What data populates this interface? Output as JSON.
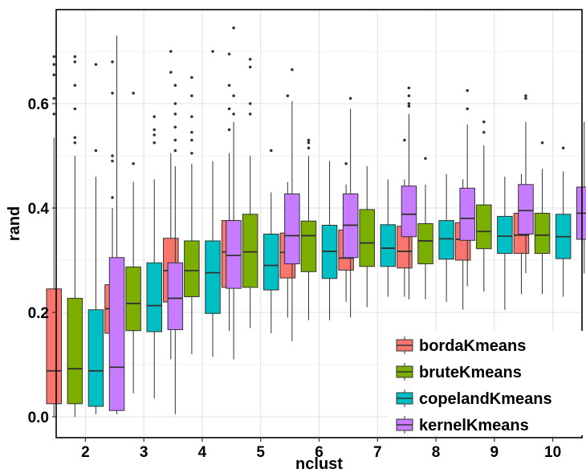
{
  "chart_data": {
    "type": "boxplot",
    "title": "",
    "xlabel": "nclust",
    "ylabel": "rand",
    "categories": [
      "2",
      "3",
      "4",
      "5",
      "6",
      "7",
      "8",
      "9",
      "10"
    ],
    "yticks": [
      "0.0",
      "0.2",
      "0.4",
      "0.6"
    ],
    "ytick_values": [
      0.0,
      0.2,
      0.4,
      0.6
    ],
    "ylim": [
      -0.04,
      0.78
    ],
    "grid": true,
    "legend_position": "bottom-right",
    "series": [
      {
        "name": "bordaKmeans",
        "color": "#F8766D",
        "boxes": [
          {
            "min": 0.0,
            "q1": 0.025,
            "median": 0.088,
            "q3": 0.245,
            "max": 0.535,
            "outliers": [
              0.58,
              0.61,
              0.655,
              0.675,
              0.69
            ]
          },
          {
            "min": 0.06,
            "q1": 0.16,
            "median": 0.207,
            "q3": 0.253,
            "max": 0.4,
            "outliers": [
              0.42,
              0.49,
              0.5,
              0.62,
              0.68
            ]
          },
          {
            "min": 0.11,
            "q1": 0.22,
            "median": 0.28,
            "q3": 0.342,
            "max": 0.505,
            "outliers": [
              0.66,
              0.7
            ]
          },
          {
            "min": 0.165,
            "q1": 0.248,
            "median": 0.316,
            "q3": 0.376,
            "max": 0.505,
            "outliers": [
              0.55,
              0.59,
              0.635,
              0.695
            ]
          },
          {
            "min": 0.19,
            "q1": 0.266,
            "median": 0.315,
            "q3": 0.352,
            "max": 0.45,
            "outliers": [
              0.615
            ]
          },
          {
            "min": 0.22,
            "q1": 0.281,
            "median": 0.304,
            "q3": 0.358,
            "max": 0.445,
            "outliers": [
              0.485
            ]
          },
          {
            "min": 0.23,
            "q1": 0.285,
            "median": 0.317,
            "q3": 0.365,
            "max": 0.455,
            "outliers": [
              0.53
            ]
          },
          {
            "min": 0.205,
            "q1": 0.3,
            "median": 0.34,
            "q3": 0.372,
            "max": 0.455,
            "outliers": []
          },
          {
            "min": 0.235,
            "q1": 0.313,
            "median": 0.348,
            "q3": 0.39,
            "max": 0.465,
            "outliers": []
          }
        ]
      },
      {
        "name": "bruteKmeans",
        "color": "#7CAE00",
        "boxes": [
          {
            "min": 0.0,
            "q1": 0.025,
            "median": 0.092,
            "q3": 0.227,
            "max": 0.5,
            "outliers": [
              0.525,
              0.535,
              0.59,
              0.635,
              0.68,
              0.69
            ]
          },
          {
            "min": 0.045,
            "q1": 0.165,
            "median": 0.217,
            "q3": 0.287,
            "max": 0.45,
            "outliers": [
              0.485,
              0.62
            ]
          },
          {
            "min": 0.12,
            "q1": 0.23,
            "median": 0.28,
            "q3": 0.337,
            "max": 0.485,
            "outliers": [
              0.505,
              0.53,
              0.545,
              0.575,
              0.615,
              0.65
            ]
          },
          {
            "min": 0.17,
            "q1": 0.248,
            "median": 0.316,
            "q3": 0.388,
            "max": 0.5,
            "outliers": [
              0.58,
              0.6,
              0.67,
              0.685
            ]
          },
          {
            "min": 0.185,
            "q1": 0.278,
            "median": 0.347,
            "q3": 0.375,
            "max": 0.5,
            "outliers": [
              0.515,
              0.525,
              0.53
            ]
          },
          {
            "min": 0.21,
            "q1": 0.288,
            "median": 0.333,
            "q3": 0.397,
            "max": 0.48,
            "outliers": []
          },
          {
            "min": 0.225,
            "q1": 0.293,
            "median": 0.337,
            "q3": 0.37,
            "max": 0.445,
            "outliers": [
              0.495
            ]
          },
          {
            "min": 0.24,
            "q1": 0.322,
            "median": 0.355,
            "q3": 0.406,
            "max": 0.52,
            "outliers": [
              0.545,
              0.565
            ]
          },
          {
            "min": 0.235,
            "q1": 0.313,
            "median": 0.348,
            "q3": 0.39,
            "max": 0.475,
            "outliers": [
              0.525
            ]
          }
        ]
      },
      {
        "name": "copelandKmeans",
        "color": "#00BFC4",
        "boxes": [
          {
            "min": 0.005,
            "q1": 0.02,
            "median": 0.088,
            "q3": 0.205,
            "max": 0.46,
            "outliers": [
              0.51,
              0.675
            ]
          },
          {
            "min": 0.035,
            "q1": 0.163,
            "median": 0.213,
            "q3": 0.295,
            "max": 0.455,
            "outliers": [
              0.525,
              0.54,
              0.55,
              0.575
            ]
          },
          {
            "min": 0.115,
            "q1": 0.198,
            "median": 0.276,
            "q3": 0.337,
            "max": 0.49,
            "outliers": [
              0.7
            ]
          },
          {
            "min": 0.16,
            "q1": 0.243,
            "median": 0.29,
            "q3": 0.35,
            "max": 0.43,
            "outliers": [
              0.51
            ]
          },
          {
            "min": 0.185,
            "q1": 0.265,
            "median": 0.317,
            "q3": 0.367,
            "max": 0.49,
            "outliers": []
          },
          {
            "min": 0.23,
            "q1": 0.288,
            "median": 0.323,
            "q3": 0.368,
            "max": 0.455,
            "outliers": []
          },
          {
            "min": 0.22,
            "q1": 0.302,
            "median": 0.341,
            "q3": 0.376,
            "max": 0.465,
            "outliers": []
          },
          {
            "min": 0.205,
            "q1": 0.313,
            "median": 0.346,
            "q3": 0.384,
            "max": 0.46,
            "outliers": []
          },
          {
            "min": 0.23,
            "q1": 0.303,
            "median": 0.345,
            "q3": 0.388,
            "max": 0.47,
            "outliers": [
              0.515
            ]
          }
        ]
      },
      {
        "name": "kernelKmeans",
        "color": "#C77CFF",
        "boxes": [
          {
            "min": 0.005,
            "q1": 0.012,
            "median": 0.095,
            "q3": 0.305,
            "max": 0.73,
            "outliers": []
          },
          {
            "min": 0.005,
            "q1": 0.167,
            "median": 0.227,
            "q3": 0.295,
            "max": 0.48,
            "outliers": [
              0.51,
              0.53,
              0.555,
              0.58,
              0.6,
              0.635
            ]
          },
          {
            "min": 0.11,
            "q1": 0.246,
            "median": 0.309,
            "q3": 0.376,
            "max": 0.565,
            "outliers": [
              0.58,
              0.615,
              0.745
            ]
          },
          {
            "min": 0.145,
            "q1": 0.293,
            "median": 0.347,
            "q3": 0.427,
            "max": 0.605,
            "outliers": [
              0.665
            ]
          },
          {
            "min": 0.19,
            "q1": 0.305,
            "median": 0.367,
            "q3": 0.427,
            "max": 0.59,
            "outliers": [
              0.61
            ]
          },
          {
            "min": 0.225,
            "q1": 0.345,
            "median": 0.388,
            "q3": 0.442,
            "max": 0.58,
            "outliers": [
              0.595,
              0.6,
              0.615,
              0.63
            ]
          },
          {
            "min": 0.25,
            "q1": 0.338,
            "median": 0.38,
            "q3": 0.438,
            "max": 0.56,
            "outliers": [
              0.59,
              0.625
            ]
          },
          {
            "min": 0.275,
            "q1": 0.35,
            "median": 0.395,
            "q3": 0.445,
            "max": 0.565,
            "outliers": [
              0.61,
              0.615
            ]
          },
          {
            "min": 0.275,
            "q1": 0.34,
            "median": 0.39,
            "q3": 0.44,
            "max": 0.565,
            "outliers": []
          }
        ]
      }
    ]
  }
}
